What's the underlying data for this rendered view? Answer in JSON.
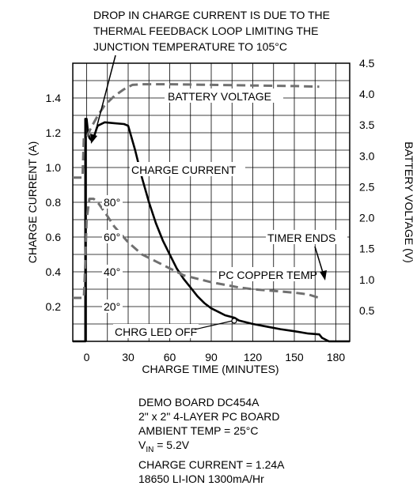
{
  "chart_data": {
    "type": "line",
    "xlabel": "CHARGE TIME (MINUTES)",
    "ylabel_left": "CHARGE CURRENT (A)",
    "ylabel_right": "BATTERY VOLTAGE (V)",
    "x_ticks": [
      "0",
      "30",
      "60",
      "90",
      "120",
      "150",
      "180"
    ],
    "y_left_ticks": [
      "0.2",
      "0.4",
      "0.6",
      "0.8",
      "1.0",
      "1.2",
      "1.4"
    ],
    "y_right_ticks": [
      "0.5",
      "1.0",
      "1.5",
      "2.0",
      "2.5",
      "3.0",
      "3.5",
      "4.0",
      "4.5"
    ],
    "temp_ticks": [
      "20°",
      "40°",
      "60°",
      "80°"
    ],
    "xlim": [
      -10,
      190
    ],
    "ylim_left": [
      0,
      1.6
    ],
    "ylim_right": [
      0,
      4.5
    ],
    "grid": true,
    "series": [
      {
        "name": "CHARGE CURRENT",
        "axis": "left",
        "style": "solid",
        "points": [
          [
            -10,
            0
          ],
          [
            -1,
            0
          ],
          [
            -1,
            1.28
          ],
          [
            0,
            1.28
          ],
          [
            1,
            1.2
          ],
          [
            2,
            1.17
          ],
          [
            3,
            1.16
          ],
          [
            5,
            1.17
          ],
          [
            7,
            1.22
          ],
          [
            8,
            1.24
          ],
          [
            13,
            1.26
          ],
          [
            20,
            1.255
          ],
          [
            27,
            1.25
          ],
          [
            30,
            1.24
          ],
          [
            35,
            1.1
          ],
          [
            40,
            0.94
          ],
          [
            45,
            0.8
          ],
          [
            50,
            0.68
          ],
          [
            55,
            0.58
          ],
          [
            60,
            0.5
          ],
          [
            65,
            0.42
          ],
          [
            70,
            0.36
          ],
          [
            75,
            0.31
          ],
          [
            80,
            0.26
          ],
          [
            85,
            0.22
          ],
          [
            90,
            0.19
          ],
          [
            95,
            0.17
          ],
          [
            100,
            0.15
          ],
          [
            107,
            0.135
          ],
          [
            110,
            0.12
          ],
          [
            120,
            0.1
          ],
          [
            130,
            0.085
          ],
          [
            140,
            0.07
          ],
          [
            150,
            0.058
          ],
          [
            160,
            0.045
          ],
          [
            168,
            0.04
          ],
          [
            170,
            0.02
          ],
          [
            175,
            0.0
          ],
          [
            190,
            0.0
          ]
        ]
      },
      {
        "name": "BATTERY VOLTAGE",
        "axis": "right",
        "style": "dashed",
        "points": [
          [
            -10,
            2.65
          ],
          [
            -3,
            2.65
          ],
          [
            -2,
            3.3
          ],
          [
            0,
            3.3
          ],
          [
            3,
            3.45
          ],
          [
            8,
            3.65
          ],
          [
            13,
            3.82
          ],
          [
            20,
            3.97
          ],
          [
            27,
            4.08
          ],
          [
            33,
            4.15
          ],
          [
            40,
            4.16
          ],
          [
            60,
            4.16
          ],
          [
            90,
            4.15
          ],
          [
            120,
            4.14
          ],
          [
            150,
            4.13
          ],
          [
            168,
            4.12
          ]
        ]
      },
      {
        "name": "PC COPPER TEMP",
        "axis": "temp",
        "style": "dashed",
        "points": [
          [
            -10,
            25
          ],
          [
            -2,
            25
          ],
          [
            -1,
            45
          ],
          [
            0,
            70
          ],
          [
            2,
            82
          ],
          [
            5,
            82
          ],
          [
            8,
            80
          ],
          [
            15,
            72
          ],
          [
            20,
            66
          ],
          [
            30,
            57
          ],
          [
            40,
            50
          ],
          [
            50,
            46
          ],
          [
            60,
            42
          ],
          [
            70,
            38
          ],
          [
            80,
            36
          ],
          [
            90,
            34
          ],
          [
            100,
            32.5
          ],
          [
            110,
            31
          ],
          [
            120,
            30
          ],
          [
            130,
            29.3
          ],
          [
            140,
            28.7
          ],
          [
            150,
            28
          ],
          [
            160,
            27
          ],
          [
            168,
            25
          ]
        ]
      }
    ],
    "annotations": {
      "thermal": [
        "DROP IN CHARGE CURRENT IS DUE TO THE",
        "THERMAL FEEDBACK LOOP LIMITING THE",
        "JUNCTION TEMPERATURE TO 105°C"
      ],
      "battery_voltage": "BATTERY VOLTAGE",
      "charge_current": "CHARGE CURRENT",
      "timer_ends": "TIMER ENDS",
      "pc_copper_temp": "PC COPPER TEMP",
      "chrg_led_off": "CHRG LED OFF"
    }
  },
  "notes": {
    "board": "DEMO BOARD DC454A",
    "pcb": "2\" x 2\" 4-LAYER PC BOARD",
    "ambient": "AMBIENT TEMP = 25°C",
    "vin_prefix": "V",
    "vin_sub": "IN",
    "vin_value": " = 5.2V",
    "charge_current": "CHARGE CURRENT = 1.24A",
    "battery": "18650 LI-ION 1300mA/Hr"
  }
}
